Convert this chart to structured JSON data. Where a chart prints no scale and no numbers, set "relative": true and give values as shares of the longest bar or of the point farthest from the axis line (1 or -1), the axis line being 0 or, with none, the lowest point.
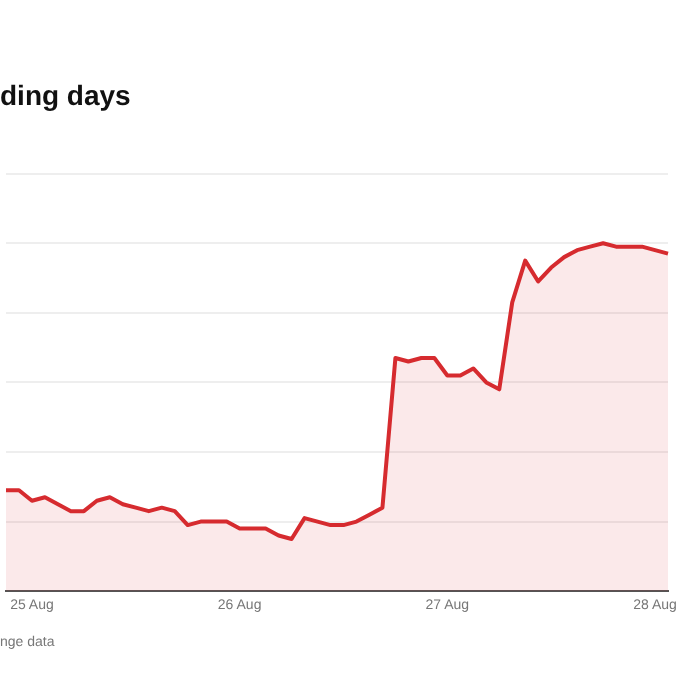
{
  "chart_data": {
    "type": "area",
    "title": "ding days",
    "annotations": [
      "nge data"
    ],
    "relative": true,
    "grid": "y",
    "categories": [
      null,
      null,
      "25 Aug",
      null,
      null,
      null,
      null,
      null,
      null,
      null,
      null,
      null,
      null,
      null,
      null,
      null,
      null,
      null,
      "26 Aug",
      null,
      null,
      null,
      null,
      null,
      null,
      null,
      null,
      null,
      null,
      null,
      null,
      null,
      null,
      null,
      "27 Aug",
      null,
      null,
      null,
      null,
      null,
      null,
      null,
      null,
      null,
      null,
      null,
      null,
      null,
      null,
      null,
      "28 Aug",
      null
    ],
    "series": [
      {
        "color": "#d62b2f",
        "values": [
          0.29,
          0.29,
          0.26,
          0.27,
          0.25,
          0.23,
          0.23,
          0.26,
          0.27,
          0.25,
          0.24,
          0.23,
          0.24,
          0.23,
          0.19,
          0.2,
          0.2,
          0.2,
          0.18,
          0.18,
          0.18,
          0.16,
          0.15,
          0.21,
          0.2,
          0.19,
          0.19,
          0.2,
          0.22,
          0.24,
          0.67,
          0.66,
          0.67,
          0.67,
          0.62,
          0.62,
          0.64,
          0.6,
          0.58,
          0.83,
          0.95,
          0.89,
          0.93,
          0.96,
          0.98,
          0.99,
          1,
          0.99,
          0.99,
          0.99,
          0.98,
          0.97
        ]
      }
    ],
    "legend": false
  }
}
